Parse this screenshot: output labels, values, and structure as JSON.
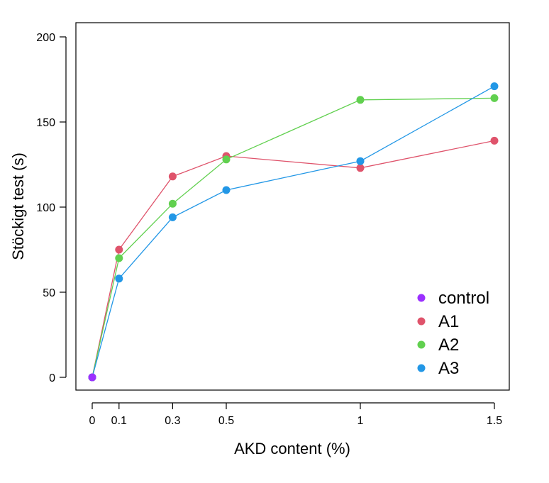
{
  "chart_data": {
    "type": "line",
    "title": "",
    "xlabel": "AKD content (%)",
    "ylabel": "Stöckigt test (s)",
    "xlim": [
      0,
      1.5
    ],
    "ylim": [
      0,
      200
    ],
    "xticks": [
      0,
      0.1,
      0.3,
      0.5,
      1,
      1.5
    ],
    "xtick_labels": [
      "0",
      "0.1",
      "0.3",
      "0.5",
      "1",
      "1.5"
    ],
    "yticks": [
      0,
      50,
      100,
      150,
      200
    ],
    "ytick_labels": [
      "0",
      "50",
      "100",
      "150",
      "200"
    ],
    "grid": false,
    "legend_position": "bottom-right",
    "series": [
      {
        "name": "control",
        "color": "#9b30ff",
        "x": [
          0
        ],
        "values": [
          0
        ]
      },
      {
        "name": "A1",
        "color": "#df536b",
        "x": [
          0,
          0.1,
          0.3,
          0.5,
          1,
          1.5
        ],
        "values": [
          0,
          75,
          118,
          130,
          123,
          139
        ]
      },
      {
        "name": "A2",
        "color": "#61d04f",
        "x": [
          0,
          0.1,
          0.3,
          0.5,
          1,
          1.5
        ],
        "values": [
          0,
          70,
          102,
          128,
          163,
          164
        ]
      },
      {
        "name": "A3",
        "color": "#2297e6",
        "x": [
          0,
          0.1,
          0.3,
          0.5,
          1,
          1.5
        ],
        "values": [
          0,
          58,
          94,
          110,
          127,
          171
        ]
      }
    ]
  }
}
